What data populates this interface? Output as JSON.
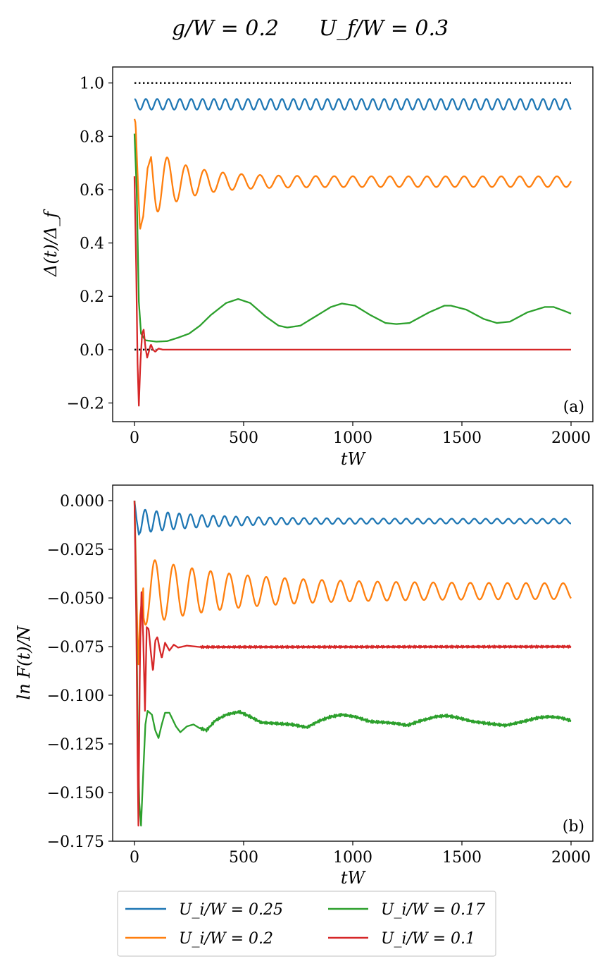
{
  "figure": {
    "title_part1": "g/W = 0.2",
    "title_part2": "U_f/W = 0.3"
  },
  "colors": {
    "blue": "#1f77b4",
    "orange": "#ff7f0e",
    "green": "#2ca02c",
    "red": "#d62728",
    "reference": "#000000"
  },
  "chart_data": [
    {
      "type": "line",
      "panel_label": "(a)",
      "xlabel": "tW",
      "ylabel": "Δ(t)/Δ_f",
      "xlim": [
        -100,
        2100
      ],
      "ylim": [
        -0.27,
        1.06
      ],
      "x_ticks": [
        0,
        500,
        1000,
        1500,
        2000
      ],
      "x_tick_labels": [
        "0",
        "500",
        "1000",
        "1500",
        "2000"
      ],
      "y_ticks": [
        -0.2,
        0.0,
        0.2,
        0.4,
        0.6,
        0.8,
        1.0
      ],
      "y_tick_labels": [
        "−0.2",
        "0.0",
        "0.2",
        "0.4",
        "0.6",
        "0.8",
        "1.0"
      ],
      "reference_lines": [
        {
          "y": 1.0,
          "x_range": [
            0,
            2000
          ],
          "style": "dotted"
        },
        {
          "y": 0.0,
          "x_range": [
            0,
            100
          ],
          "style": "dotted"
        }
      ],
      "series": [
        {
          "name": "U_i/W = 0.25",
          "color": "#1f77b4",
          "model": "osc",
          "start": 0.935,
          "center": 0.92,
          "amp0": 0.02,
          "ampInf": 0.02,
          "tau": 1000,
          "period": 52,
          "phase": 0,
          "t0": 0
        },
        {
          "name": "U_i/W = 0.2",
          "color": "#ff7f0e",
          "model": "osc",
          "start": 0.865,
          "center": 0.63,
          "amp0": 0.19,
          "ampInf": 0.02,
          "tau": 160,
          "period": 85,
          "phase": 0.35,
          "t0": 10,
          "knots": [
            [
              0,
              0.865
            ],
            [
              5,
              0.85
            ],
            [
              12,
              0.7
            ],
            [
              25,
              0.45
            ],
            [
              40,
              0.5
            ],
            [
              60,
              0.68
            ],
            [
              75,
              0.72
            ]
          ]
        },
        {
          "name": "U_i/W = 0.17",
          "color": "#2ca02c",
          "model": "pts",
          "pts": [
            [
              0,
              0.81
            ],
            [
              10,
              0.6
            ],
            [
              20,
              0.18
            ],
            [
              30,
              0.06
            ],
            [
              50,
              0.035
            ],
            [
              100,
              0.03
            ],
            [
              150,
              0.032
            ],
            [
              200,
              0.045
            ],
            [
              250,
              0.06
            ],
            [
              300,
              0.09
            ],
            [
              350,
              0.13
            ],
            [
              420,
              0.175
            ],
            [
              475,
              0.19
            ],
            [
              530,
              0.175
            ],
            [
              600,
              0.125
            ],
            [
              660,
              0.09
            ],
            [
              700,
              0.083
            ],
            [
              760,
              0.09
            ],
            [
              850,
              0.135
            ],
            [
              900,
              0.16
            ],
            [
              950,
              0.173
            ],
            [
              1010,
              0.165
            ],
            [
              1080,
              0.13
            ],
            [
              1150,
              0.1
            ],
            [
              1200,
              0.096
            ],
            [
              1260,
              0.1
            ],
            [
              1350,
              0.14
            ],
            [
              1420,
              0.165
            ],
            [
              1450,
              0.165
            ],
            [
              1520,
              0.15
            ],
            [
              1600,
              0.115
            ],
            [
              1660,
              0.1
            ],
            [
              1720,
              0.105
            ],
            [
              1800,
              0.14
            ],
            [
              1880,
              0.16
            ],
            [
              1920,
              0.16
            ],
            [
              1970,
              0.145
            ],
            [
              2000,
              0.135
            ]
          ]
        },
        {
          "name": "U_i/W = 0.1",
          "color": "#d62728",
          "model": "pts",
          "pts": [
            [
              0,
              0.65
            ],
            [
              8,
              0.3
            ],
            [
              14,
              -0.05
            ],
            [
              20,
              -0.21
            ],
            [
              27,
              -0.05
            ],
            [
              35,
              0.06
            ],
            [
              42,
              0.075
            ],
            [
              50,
              0.01
            ],
            [
              58,
              -0.03
            ],
            [
              65,
              -0.01
            ],
            [
              75,
              0.02
            ],
            [
              85,
              0.0
            ],
            [
              95,
              -0.008
            ],
            [
              110,
              0.004
            ],
            [
              130,
              0.0
            ],
            [
              2000,
              0.0
            ]
          ]
        }
      ]
    },
    {
      "type": "line",
      "panel_label": "(b)",
      "xlabel": "tW",
      "ylabel": "ln F(t)/N",
      "xlim": [
        -100,
        2100
      ],
      "ylim": [
        -0.175,
        0.008
      ],
      "x_ticks": [
        0,
        500,
        1000,
        1500,
        2000
      ],
      "x_tick_labels": [
        "0",
        "500",
        "1000",
        "1500",
        "2000"
      ],
      "y_ticks": [
        0.0,
        -0.025,
        -0.05,
        -0.075,
        -0.1,
        -0.125,
        -0.15,
        -0.175
      ],
      "y_tick_labels": [
        "0.000",
        "−0.025",
        "−0.050",
        "−0.075",
        "−0.100",
        "−0.125",
        "−0.150",
        "−0.175"
      ],
      "series": [
        {
          "name": "U_i/W = 0.25",
          "color": "#1f77b4",
          "model": "osc",
          "start": 0.0,
          "center": -0.0105,
          "amp0": 0.0065,
          "ampInf": 0.0012,
          "tau": 300,
          "period": 52,
          "phase": 0.25,
          "t0": 10,
          "knots": [
            [
              0,
              0.0
            ],
            [
              10,
              -0.01
            ],
            [
              20,
              -0.0175
            ]
          ]
        },
        {
          "name": "U_i/W = 0.2",
          "color": "#ff7f0e",
          "model": "osc",
          "start": 0.0,
          "center": -0.0465,
          "amp0": 0.018,
          "ampInf": 0.004,
          "tau": 400,
          "period": 85,
          "phase": 0.25,
          "t0": 30,
          "knots": [
            [
              0,
              0.0
            ],
            [
              8,
              -0.04
            ],
            [
              17,
              -0.0875
            ],
            [
              25,
              -0.06
            ],
            [
              40,
              -0.045
            ]
          ]
        },
        {
          "name": "U_i/W = 0.17",
          "color": "#2ca02c",
          "model": "pts",
          "noise": 0.0008,
          "pts": [
            [
              0,
              0.0
            ],
            [
              8,
              -0.05
            ],
            [
              15,
              -0.12
            ],
            [
              22,
              -0.155
            ],
            [
              30,
              -0.167
            ],
            [
              40,
              -0.14
            ],
            [
              50,
              -0.115
            ],
            [
              60,
              -0.108
            ],
            [
              80,
              -0.11
            ],
            [
              95,
              -0.118
            ],
            [
              110,
              -0.122
            ],
            [
              125,
              -0.115
            ],
            [
              140,
              -0.109
            ],
            [
              160,
              -0.109
            ],
            [
              190,
              -0.116
            ],
            [
              210,
              -0.119
            ],
            [
              240,
              -0.116
            ],
            [
              270,
              -0.115
            ],
            [
              300,
              -0.117
            ],
            [
              330,
              -0.118
            ],
            [
              370,
              -0.113
            ],
            [
              420,
              -0.11
            ],
            [
              480,
              -0.1085
            ],
            [
              530,
              -0.111
            ],
            [
              580,
              -0.114
            ],
            [
              650,
              -0.1145
            ],
            [
              720,
              -0.115
            ],
            [
              790,
              -0.1165
            ],
            [
              850,
              -0.113
            ],
            [
              900,
              -0.111
            ],
            [
              950,
              -0.11
            ],
            [
              1010,
              -0.111
            ],
            [
              1080,
              -0.1135
            ],
            [
              1150,
              -0.114
            ],
            [
              1200,
              -0.1145
            ],
            [
              1250,
              -0.1155
            ],
            [
              1300,
              -0.1135
            ],
            [
              1380,
              -0.111
            ],
            [
              1430,
              -0.1105
            ],
            [
              1480,
              -0.1115
            ],
            [
              1550,
              -0.1135
            ],
            [
              1620,
              -0.1145
            ],
            [
              1700,
              -0.1155
            ],
            [
              1780,
              -0.1135
            ],
            [
              1850,
              -0.1115
            ],
            [
              1900,
              -0.111
            ],
            [
              1950,
              -0.1115
            ],
            [
              2000,
              -0.113
            ]
          ]
        },
        {
          "name": "U_i/W = 0.1",
          "color": "#d62728",
          "model": "pts",
          "noise": 0.0006,
          "pts": [
            [
              0,
              0.0
            ],
            [
              8,
              -0.06
            ],
            [
              14,
              -0.13
            ],
            [
              18,
              -0.167
            ],
            [
              25,
              -0.08
            ],
            [
              32,
              -0.047
            ],
            [
              40,
              -0.07
            ],
            [
              48,
              -0.108
            ],
            [
              56,
              -0.065
            ],
            [
              65,
              -0.066
            ],
            [
              75,
              -0.078
            ],
            [
              85,
              -0.088
            ],
            [
              95,
              -0.072
            ],
            [
              105,
              -0.07
            ],
            [
              115,
              -0.076
            ],
            [
              125,
              -0.081
            ],
            [
              140,
              -0.073
            ],
            [
              160,
              -0.077
            ],
            [
              180,
              -0.074
            ],
            [
              200,
              -0.0755
            ],
            [
              240,
              -0.0745
            ],
            [
              300,
              -0.0752
            ],
            [
              2000,
              -0.075
            ]
          ]
        }
      ]
    }
  ],
  "legend": {
    "items": [
      {
        "label": "U_i/W = 0.25",
        "color": "#1f77b4"
      },
      {
        "label": "U_i/W = 0.17",
        "color": "#2ca02c"
      },
      {
        "label": "U_i/W = 0.2",
        "color": "#ff7f0e"
      },
      {
        "label": "U_i/W = 0.1",
        "color": "#d62728"
      }
    ]
  }
}
